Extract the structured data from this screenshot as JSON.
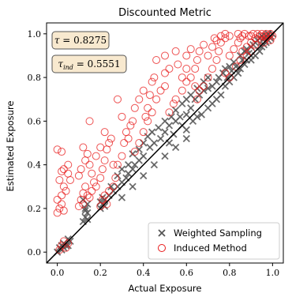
{
  "chart_data": {
    "type": "scatter",
    "title": "Discounted Metric",
    "xlabel": "Actual Exposure",
    "ylabel": "Estimated Exposure",
    "xlim": [
      -0.05,
      1.05
    ],
    "ylim": [
      -0.05,
      1.05
    ],
    "xticks": [
      "0.0",
      "0.2",
      "0.4",
      "0.6",
      "0.8",
      "1.0"
    ],
    "yticks": [
      "0.0",
      "0.2",
      "0.4",
      "0.6",
      "0.8",
      "1.0"
    ],
    "grid": false,
    "legend_position": "lower-right",
    "reference_line": "y = x",
    "annotations": [
      {
        "text": "τ = 0.8275"
      },
      {
        "text": "τ_ind = 0.5551"
      }
    ],
    "series": [
      {
        "name": "Weighted Sampling",
        "marker": "x",
        "color": "#555555",
        "points": [
          [
            0.0,
            0.0
          ],
          [
            0.01,
            0.02
          ],
          [
            0.02,
            0.01
          ],
          [
            0.03,
            0.04
          ],
          [
            0.04,
            0.03
          ],
          [
            0.05,
            0.06
          ],
          [
            0.06,
            0.05
          ],
          [
            0.03,
            0.02
          ],
          [
            0.05,
            0.03
          ],
          [
            0.02,
            0.03
          ],
          [
            0.12,
            0.14
          ],
          [
            0.13,
            0.16
          ],
          [
            0.14,
            0.18
          ],
          [
            0.13,
            0.2
          ],
          [
            0.14,
            0.22
          ],
          [
            0.12,
            0.24
          ],
          [
            0.13,
            0.19
          ],
          [
            0.14,
            0.15
          ],
          [
            0.2,
            0.2
          ],
          [
            0.21,
            0.22
          ],
          [
            0.22,
            0.24
          ],
          [
            0.21,
            0.25
          ],
          [
            0.2,
            0.23
          ],
          [
            0.22,
            0.21
          ],
          [
            0.24,
            0.26
          ],
          [
            0.26,
            0.28
          ],
          [
            0.28,
            0.3
          ],
          [
            0.3,
            0.32
          ],
          [
            0.32,
            0.34
          ],
          [
            0.33,
            0.36
          ],
          [
            0.35,
            0.38
          ],
          [
            0.36,
            0.4
          ],
          [
            0.38,
            0.42
          ],
          [
            0.25,
            0.3
          ],
          [
            0.28,
            0.35
          ],
          [
            0.3,
            0.38
          ],
          [
            0.33,
            0.4
          ],
          [
            0.35,
            0.45
          ],
          [
            0.38,
            0.47
          ],
          [
            0.4,
            0.5
          ],
          [
            0.42,
            0.53
          ],
          [
            0.44,
            0.55
          ],
          [
            0.47,
            0.57
          ],
          [
            0.3,
            0.25
          ],
          [
            0.35,
            0.3
          ],
          [
            0.4,
            0.35
          ],
          [
            0.45,
            0.4
          ],
          [
            0.5,
            0.44
          ],
          [
            0.55,
            0.48
          ],
          [
            0.6,
            0.52
          ],
          [
            0.4,
            0.44
          ],
          [
            0.43,
            0.48
          ],
          [
            0.45,
            0.5
          ],
          [
            0.48,
            0.52
          ],
          [
            0.5,
            0.55
          ],
          [
            0.52,
            0.58
          ],
          [
            0.55,
            0.6
          ],
          [
            0.57,
            0.62
          ],
          [
            0.6,
            0.63
          ],
          [
            0.5,
            0.6
          ],
          [
            0.53,
            0.62
          ],
          [
            0.55,
            0.65
          ],
          [
            0.58,
            0.68
          ],
          [
            0.6,
            0.7
          ],
          [
            0.62,
            0.72
          ],
          [
            0.65,
            0.75
          ],
          [
            0.68,
            0.78
          ],
          [
            0.7,
            0.8
          ],
          [
            0.63,
            0.6
          ],
          [
            0.65,
            0.62
          ],
          [
            0.67,
            0.63
          ],
          [
            0.7,
            0.66
          ],
          [
            0.72,
            0.68
          ],
          [
            0.74,
            0.7
          ],
          [
            0.76,
            0.72
          ],
          [
            0.7,
            0.75
          ],
          [
            0.72,
            0.76
          ],
          [
            0.74,
            0.78
          ],
          [
            0.75,
            0.8
          ],
          [
            0.77,
            0.82
          ],
          [
            0.78,
            0.84
          ],
          [
            0.8,
            0.85
          ],
          [
            0.82,
            0.87
          ],
          [
            0.8,
            0.78
          ],
          [
            0.82,
            0.8
          ],
          [
            0.84,
            0.82
          ],
          [
            0.85,
            0.84
          ],
          [
            0.87,
            0.86
          ],
          [
            0.88,
            0.88
          ],
          [
            0.9,
            0.9
          ],
          [
            0.85,
            0.9
          ],
          [
            0.87,
            0.92
          ],
          [
            0.88,
            0.93
          ],
          [
            0.9,
            0.94
          ],
          [
            0.91,
            0.95
          ],
          [
            0.92,
            0.96
          ],
          [
            0.93,
            0.97
          ],
          [
            0.94,
            0.98
          ],
          [
            0.9,
            0.88
          ],
          [
            0.92,
            0.9
          ],
          [
            0.94,
            0.92
          ],
          [
            0.95,
            0.94
          ],
          [
            0.96,
            0.95
          ],
          [
            0.97,
            0.96
          ],
          [
            0.98,
            0.97
          ],
          [
            0.99,
            0.98
          ],
          [
            1.0,
            1.0
          ],
          [
            0.95,
            0.99
          ],
          [
            0.96,
            0.98
          ],
          [
            0.97,
            0.99
          ],
          [
            0.98,
            1.0
          ],
          [
            0.99,
            0.99
          ],
          [
            0.62,
            0.66
          ],
          [
            0.64,
            0.7
          ],
          [
            0.66,
            0.72
          ],
          [
            0.68,
            0.74
          ],
          [
            0.58,
            0.58
          ],
          [
            0.6,
            0.56
          ],
          [
            0.54,
            0.54
          ],
          [
            0.52,
            0.5
          ],
          [
            0.78,
            0.76
          ],
          [
            0.79,
            0.8
          ],
          [
            0.81,
            0.83
          ],
          [
            0.83,
            0.85
          ],
          [
            0.86,
            0.88
          ],
          [
            0.89,
            0.91
          ]
        ]
      },
      {
        "name": "Induced Method",
        "marker": "circle-open",
        "color": "#e8191a",
        "points": [
          [
            0.01,
            0.01
          ],
          [
            0.02,
            0.03
          ],
          [
            0.03,
            0.05
          ],
          [
            0.04,
            0.02
          ],
          [
            0.05,
            0.04
          ],
          [
            0.0,
            0.18
          ],
          [
            0.01,
            0.2
          ],
          [
            0.02,
            0.22
          ],
          [
            0.0,
            0.24
          ],
          [
            0.03,
            0.19
          ],
          [
            0.02,
            0.26
          ],
          [
            0.03,
            0.3
          ],
          [
            0.04,
            0.28
          ],
          [
            0.01,
            0.33
          ],
          [
            0.02,
            0.37
          ],
          [
            0.03,
            0.38
          ],
          [
            0.05,
            0.36
          ],
          [
            0.06,
            0.33
          ],
          [
            0.02,
            0.46
          ],
          [
            0.0,
            0.47
          ],
          [
            0.05,
            0.4
          ],
          [
            0.1,
            0.21
          ],
          [
            0.11,
            0.24
          ],
          [
            0.12,
            0.22
          ],
          [
            0.12,
            0.27
          ],
          [
            0.13,
            0.3
          ],
          [
            0.14,
            0.26
          ],
          [
            0.15,
            0.25
          ],
          [
            0.16,
            0.28
          ],
          [
            0.1,
            0.35
          ],
          [
            0.11,
            0.38
          ],
          [
            0.13,
            0.42
          ],
          [
            0.14,
            0.45
          ],
          [
            0.15,
            0.4
          ],
          [
            0.16,
            0.36
          ],
          [
            0.17,
            0.32
          ],
          [
            0.12,
            0.48
          ],
          [
            0.15,
            0.6
          ],
          [
            0.18,
            0.3
          ],
          [
            0.2,
            0.34
          ],
          [
            0.21,
            0.38
          ],
          [
            0.22,
            0.42
          ],
          [
            0.23,
            0.47
          ],
          [
            0.24,
            0.5
          ],
          [
            0.25,
            0.52
          ],
          [
            0.22,
            0.55
          ],
          [
            0.2,
            0.48
          ],
          [
            0.2,
            0.21
          ],
          [
            0.21,
            0.24
          ],
          [
            0.22,
            0.26
          ],
          [
            0.23,
            0.22
          ],
          [
            0.24,
            0.28
          ],
          [
            0.26,
            0.3
          ],
          [
            0.27,
            0.34
          ],
          [
            0.28,
            0.4
          ],
          [
            0.3,
            0.44
          ],
          [
            0.31,
            0.5
          ],
          [
            0.32,
            0.55
          ],
          [
            0.33,
            0.52
          ],
          [
            0.34,
            0.58
          ],
          [
            0.35,
            0.6
          ],
          [
            0.3,
            0.62
          ],
          [
            0.36,
            0.66
          ],
          [
            0.28,
            0.7
          ],
          [
            0.38,
            0.7
          ],
          [
            0.4,
            0.74
          ],
          [
            0.41,
            0.62
          ],
          [
            0.42,
            0.66
          ],
          [
            0.43,
            0.72
          ],
          [
            0.44,
            0.78
          ],
          [
            0.45,
            0.8
          ],
          [
            0.4,
            0.55
          ],
          [
            0.42,
            0.6
          ],
          [
            0.44,
            0.64
          ],
          [
            0.46,
            0.7
          ],
          [
            0.48,
            0.74
          ],
          [
            0.5,
            0.76
          ],
          [
            0.5,
            0.82
          ],
          [
            0.52,
            0.84
          ],
          [
            0.46,
            0.88
          ],
          [
            0.5,
            0.9
          ],
          [
            0.55,
            0.92
          ],
          [
            0.56,
            0.86
          ],
          [
            0.58,
            0.8
          ],
          [
            0.6,
            0.84
          ],
          [
            0.6,
            0.9
          ],
          [
            0.62,
            0.93
          ],
          [
            0.55,
            0.7
          ],
          [
            0.58,
            0.74
          ],
          [
            0.6,
            0.78
          ],
          [
            0.62,
            0.8
          ],
          [
            0.64,
            0.84
          ],
          [
            0.65,
            0.88
          ],
          [
            0.66,
            0.92
          ],
          [
            0.68,
            0.95
          ],
          [
            0.65,
            0.7
          ],
          [
            0.68,
            0.76
          ],
          [
            0.7,
            0.8
          ],
          [
            0.72,
            0.84
          ],
          [
            0.74,
            0.88
          ],
          [
            0.75,
            0.92
          ],
          [
            0.76,
            0.96
          ],
          [
            0.78,
            0.98
          ],
          [
            0.7,
            0.9
          ],
          [
            0.72,
            0.94
          ],
          [
            0.74,
            0.97
          ],
          [
            0.8,
            0.9
          ],
          [
            0.82,
            0.93
          ],
          [
            0.84,
            0.96
          ],
          [
            0.85,
            0.98
          ],
          [
            0.86,
            0.99
          ],
          [
            0.88,
            0.94
          ],
          [
            0.9,
            0.96
          ],
          [
            0.9,
            0.99
          ],
          [
            0.92,
            0.98
          ],
          [
            0.94,
            0.99
          ],
          [
            0.95,
            0.97
          ],
          [
            0.96,
            0.99
          ],
          [
            0.97,
            0.98
          ],
          [
            0.98,
            0.99
          ],
          [
            0.99,
            1.0
          ],
          [
            1.0,
            0.99
          ],
          [
            0.93,
            1.0
          ],
          [
            0.91,
            1.0
          ],
          [
            0.89,
            0.99
          ],
          [
            0.87,
            1.0
          ],
          [
            0.84,
            1.0
          ],
          [
            0.8,
            0.99
          ],
          [
            0.78,
            1.0
          ],
          [
            0.76,
            0.99
          ],
          [
            0.73,
            0.98
          ],
          [
            0.83,
            0.85
          ],
          [
            0.85,
            0.88
          ],
          [
            0.8,
            0.8
          ],
          [
            0.78,
            0.82
          ],
          [
            0.64,
            0.76
          ],
          [
            0.66,
            0.74
          ],
          [
            0.52,
            0.64
          ],
          [
            0.54,
            0.68
          ],
          [
            0.38,
            0.5
          ],
          [
            0.36,
            0.46
          ],
          [
            0.26,
            0.4
          ],
          [
            0.18,
            0.44
          ],
          [
            0.97,
            1.0
          ],
          [
            0.95,
            1.0
          ],
          [
            0.99,
            0.97
          ],
          [
            0.96,
            0.96
          ],
          [
            0.92,
            0.95
          ],
          [
            0.9,
            0.92
          ],
          [
            0.88,
            0.9
          ],
          [
            0.86,
            0.92
          ]
        ]
      }
    ]
  }
}
